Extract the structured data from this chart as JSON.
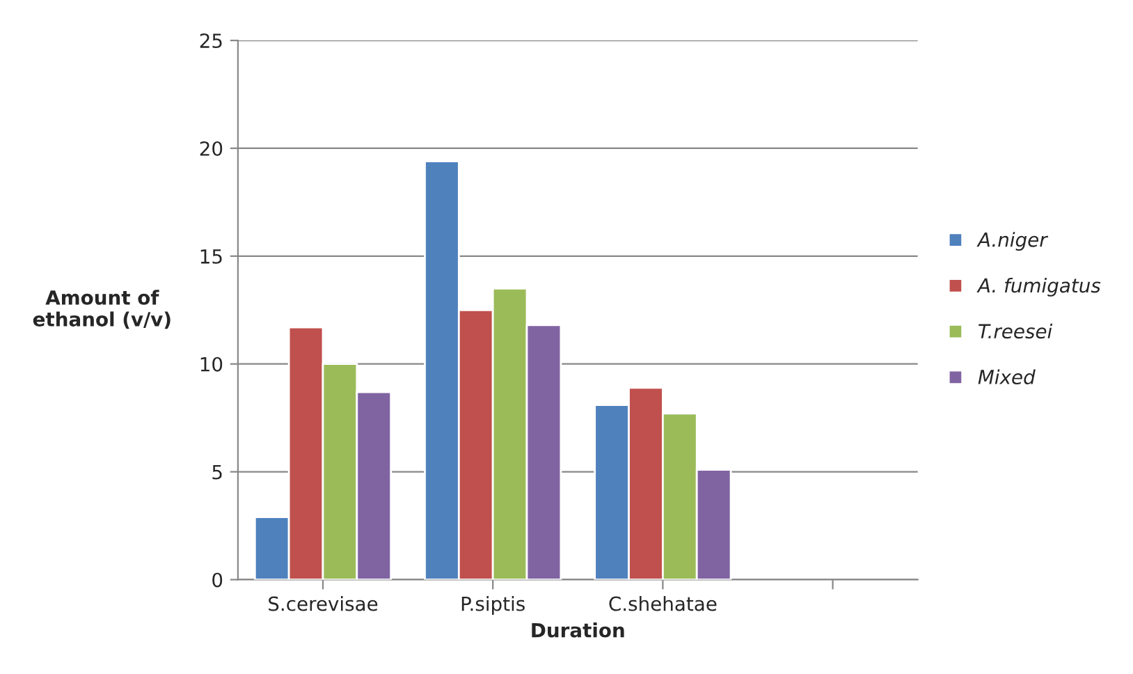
{
  "chart_data": {
    "type": "bar",
    "xlabel": "Duration",
    "ylabel": "Amount of\nethanol (v/v)",
    "categories": [
      "S.cerevisae",
      "P.siptis",
      "C.shehatae",
      null
    ],
    "series": [
      {
        "name": "A.niger",
        "color": "#4f81bd",
        "values": [
          2.9,
          19.4,
          8.1,
          null
        ]
      },
      {
        "name": "A. fumigatus",
        "color": "#c0504d",
        "values": [
          11.7,
          12.5,
          8.9,
          null
        ]
      },
      {
        "name": "T.reesei",
        "color": "#9bbb59",
        "values": [
          10.0,
          13.5,
          7.7,
          null
        ]
      },
      {
        "name": "Mixed",
        "color": "#8064a2",
        "values": [
          8.7,
          11.8,
          5.1,
          null
        ]
      }
    ],
    "ylim": [
      0,
      25
    ],
    "yticks": [
      0,
      5,
      10,
      15,
      20,
      25
    ],
    "grid": "y",
    "legend": "right"
  }
}
